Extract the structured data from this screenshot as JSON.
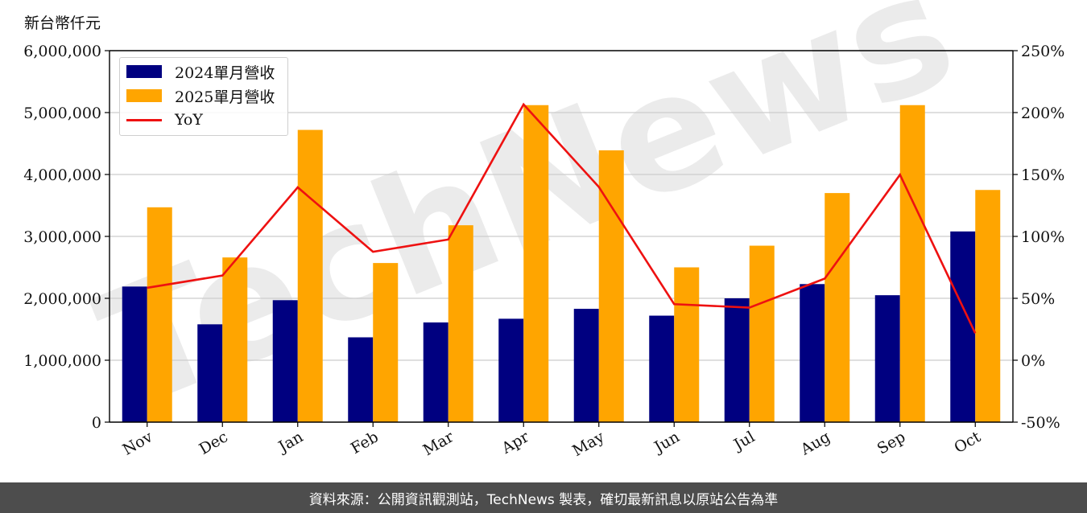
{
  "unit_label": "新台幣仟元",
  "footer_text": "資料來源：公開資訊觀測站，TechNews 製表，確切最新訊息以原站公告為準",
  "watermark_text": "TechNews",
  "chart_data": {
    "type": "bar",
    "categories": [
      "Nov",
      "Dec",
      "Jan",
      "Feb",
      "Mar",
      "Apr",
      "May",
      "Jun",
      "Jul",
      "Aug",
      "Sep",
      "Oct"
    ],
    "series": [
      {
        "name": "2024單月營收",
        "type": "bar",
        "color": "#000080",
        "values": [
          2190000,
          1580000,
          1970000,
          1370000,
          1610000,
          1670000,
          1830000,
          1720000,
          2000000,
          2230000,
          2050000,
          3080000
        ]
      },
      {
        "name": "2025單月營收",
        "type": "bar",
        "color": "#ffa500",
        "values": [
          3470000,
          2660000,
          4720000,
          2570000,
          3180000,
          5120000,
          4390000,
          2500000,
          2850000,
          3700000,
          5120000,
          3750000
        ]
      },
      {
        "name": "YoY",
        "type": "line",
        "axis": "right",
        "color": "#ee1111",
        "values": [
          58.5,
          68.4,
          139.6,
          87.6,
          97.5,
          206.6,
          139.9,
          45.3,
          42.5,
          65.9,
          149.8,
          21.8
        ]
      }
    ],
    "y_left": {
      "ylim": [
        0,
        6000000
      ],
      "ticks": [
        "0",
        "1,000,000",
        "2,000,000",
        "3,000,000",
        "4,000,000",
        "5,000,000",
        "6,000,000"
      ]
    },
    "y_right": {
      "ylim": [
        -50,
        250
      ],
      "ticks": [
        "-50%",
        "0%",
        "50%",
        "100%",
        "150%",
        "200%",
        "250%"
      ]
    },
    "grid": true,
    "legend": "top-left"
  }
}
